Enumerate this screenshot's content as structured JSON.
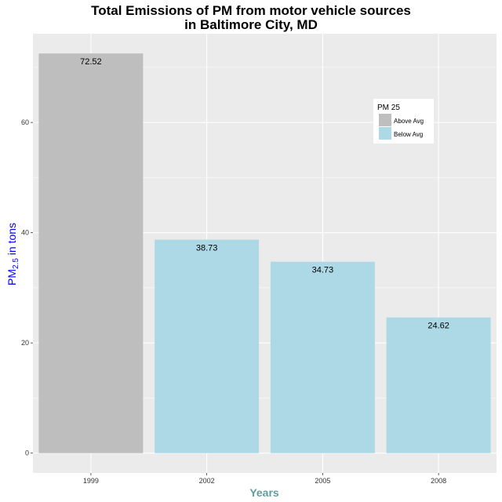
{
  "chart_data": {
    "type": "bar",
    "title": "Total Emissions of PM from motor vehicle sources",
    "subtitle": "in Baltimore City, MD",
    "xlabel": "Years",
    "ylabel": {
      "main": "PM",
      "sub": "2.5",
      "rest": " in tons"
    },
    "categories": [
      "1999",
      "2002",
      "2005",
      "2008"
    ],
    "values": [
      72.52,
      38.73,
      34.73,
      24.62
    ],
    "data_labels": [
      "72.52",
      "38.73",
      "34.73",
      "24.62"
    ],
    "fill_group": [
      "Above Avg",
      "Below Avg",
      "Below Avg",
      "Below Avg"
    ],
    "ylim": [
      -3.6,
      76.1
    ],
    "yticks": [
      0,
      20,
      40,
      60
    ],
    "grid": true,
    "legend": {
      "title": "PM 25",
      "placement": "top-right",
      "entries": [
        {
          "label": "Above Avg",
          "color": "#bebebe"
        },
        {
          "label": "Below Avg",
          "color": "#add8e6"
        }
      ]
    },
    "colors": {
      "Above Avg": "#bebebe",
      "Below Avg": "#add8e6",
      "panel": "#ebebeb",
      "xlabel": "#5f9ea0",
      "ylabel": "#0000ff"
    }
  }
}
